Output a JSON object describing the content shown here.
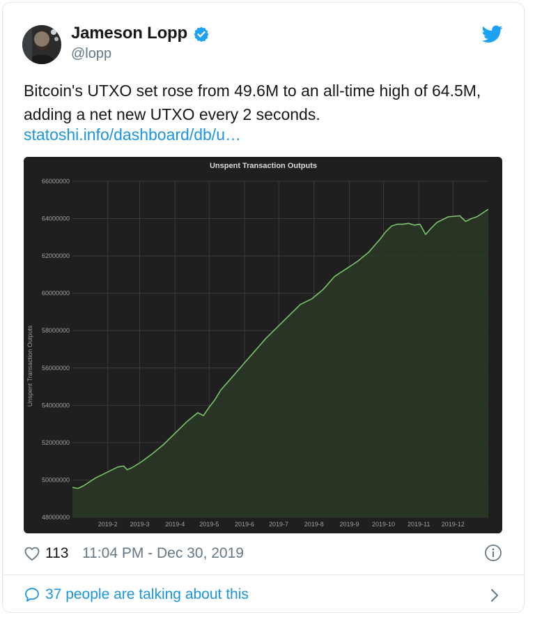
{
  "tweet": {
    "author_name": "Jameson Lopp",
    "author_handle": "@lopp",
    "text": "Bitcoin's UTXO set rose from 49.6M to an all-time high of 64.5M, adding a net new UTXO every 2 seconds.",
    "link_text": "statoshi.info/dashboard/db/u…",
    "likes": "113",
    "timestamp": "11:04 PM - Dec 30, 2019",
    "talking": "37 people are talking about this"
  },
  "colors": {
    "link": "#1b95e0",
    "verified": "#1da1f2",
    "chart_bg": "#1f1f20",
    "chart_line": "#7cc26c",
    "chart_fill": "#2a3a27"
  },
  "icons": {
    "verified": "verified-badge-icon",
    "twitter": "twitter-bird-icon",
    "like": "heart-icon",
    "info": "info-icon",
    "conversation": "speech-bubble-icon",
    "more": "chevron-right-icon"
  },
  "chart_data": {
    "type": "area",
    "title": "Unspent Transaction Outputs",
    "ylabel": "Unspent Transaction Outputs",
    "xlabel": "",
    "ylim": [
      48000000,
      66000000
    ],
    "y_ticks": [
      "48000000",
      "50000000",
      "52000000",
      "54000000",
      "56000000",
      "58000000",
      "60000000",
      "62000000",
      "64000000",
      "66000000"
    ],
    "x_ticks": [
      "2019-2",
      "2019-3",
      "2019-4",
      "2019-5",
      "2019-6",
      "2019-7",
      "2019-8",
      "2019-9",
      "2019-10",
      "2019-11",
      "2019-12"
    ],
    "xlim": [
      0,
      365
    ],
    "grid": true,
    "series": [
      {
        "x": [
          0,
          5,
          10,
          20,
          30,
          40,
          45,
          48,
          52,
          60,
          70,
          80,
          90,
          100,
          110,
          115,
          120,
          125,
          130,
          140,
          150,
          160,
          170,
          180,
          190,
          200,
          210,
          220,
          230,
          240,
          250,
          260,
          270,
          275,
          280,
          285,
          290,
          295,
          300,
          305,
          310,
          315,
          320,
          330,
          340,
          345,
          350,
          355,
          360,
          365
        ],
        "values": [
          49600000,
          49550000,
          49700000,
          50100000,
          50400000,
          50700000,
          50750000,
          50550000,
          50650000,
          50950000,
          51400000,
          51900000,
          52500000,
          53100000,
          53600000,
          53450000,
          53900000,
          54300000,
          54800000,
          55500000,
          56200000,
          56900000,
          57600000,
          58200000,
          58800000,
          59400000,
          59700000,
          60200000,
          60900000,
          61300000,
          61700000,
          62200000,
          62900000,
          63300000,
          63600000,
          63700000,
          63700000,
          63750000,
          63650000,
          63700000,
          63150000,
          63500000,
          63800000,
          64100000,
          64150000,
          63850000,
          64000000,
          64100000,
          64300000,
          64500000
        ]
      }
    ]
  }
}
